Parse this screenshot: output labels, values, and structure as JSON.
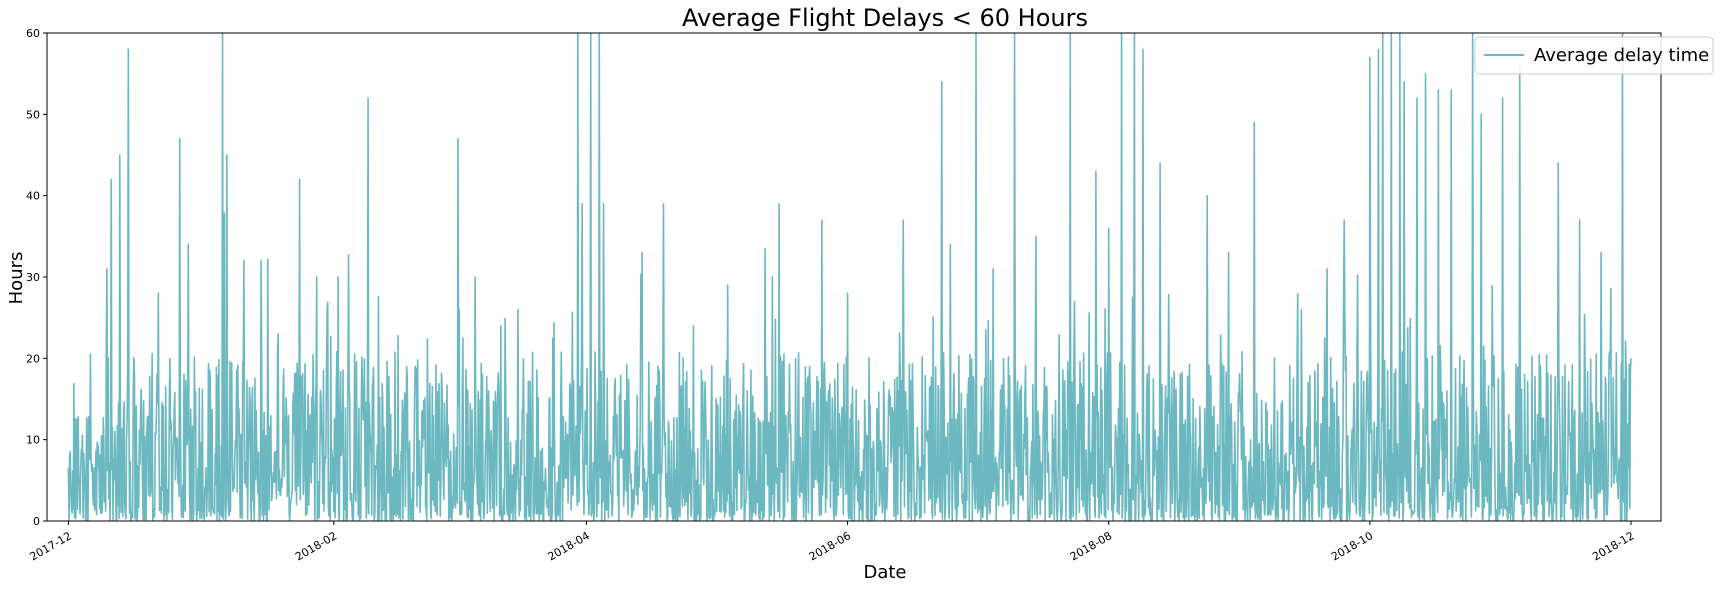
{
  "chart_data": {
    "type": "line",
    "title": "Average Flight Delays < 60 Hours",
    "xlabel": "Date",
    "ylabel": "Hours",
    "xlim": [
      "2017-11-26",
      "2018-12-08"
    ],
    "ylim": [
      0,
      60
    ],
    "x_ticks": [
      "2017-12",
      "2018-02",
      "2018-04",
      "2018-06",
      "2018-08",
      "2018-10",
      "2018-12"
    ],
    "y_ticks": [
      0,
      10,
      20,
      30,
      40,
      50,
      60
    ],
    "legend": "upper right",
    "grid": false,
    "data_range": [
      "2017-12-01",
      "2018-12-01"
    ],
    "series": [
      {
        "name": "Average delay time",
        "color": "#6cb8c0",
        "approx_samples_per_day": 7,
        "peaks": [
          [
            "2017-12-01",
            6.5
          ],
          [
            "2017-12-10",
            31
          ],
          [
            "2017-12-11",
            42
          ],
          [
            "2017-12-13",
            45
          ],
          [
            "2017-12-15",
            58
          ],
          [
            "2017-12-22",
            28
          ],
          [
            "2017-12-27",
            47
          ],
          [
            "2017-12-29",
            34
          ],
          [
            "2018-01-06",
            60
          ],
          [
            "2018-01-07",
            45
          ],
          [
            "2018-01-11",
            32
          ],
          [
            "2018-01-15",
            32
          ],
          [
            "2018-01-19",
            23
          ],
          [
            "2018-01-24",
            42
          ],
          [
            "2018-01-28",
            30
          ],
          [
            "2018-02-02",
            30
          ],
          [
            "2018-02-09",
            52
          ],
          [
            "2018-02-20",
            19
          ],
          [
            "2018-03-02",
            47
          ],
          [
            "2018-03-03",
            15
          ],
          [
            "2018-03-06",
            30
          ],
          [
            "2018-03-12",
            24
          ],
          [
            "2018-03-16",
            26
          ],
          [
            "2018-03-30",
            60
          ],
          [
            "2018-03-31",
            39
          ],
          [
            "2018-04-02",
            60
          ],
          [
            "2018-04-04",
            60
          ],
          [
            "2018-04-05",
            39
          ],
          [
            "2018-04-14",
            33
          ],
          [
            "2018-04-19",
            39
          ],
          [
            "2018-04-26",
            24
          ],
          [
            "2018-05-04",
            29
          ],
          [
            "2018-05-16",
            39
          ],
          [
            "2018-05-26",
            37
          ],
          [
            "2018-06-01",
            28
          ],
          [
            "2018-06-14",
            37
          ],
          [
            "2018-06-23",
            54
          ],
          [
            "2018-06-25",
            34
          ],
          [
            "2018-07-01",
            60
          ],
          [
            "2018-07-05",
            31
          ],
          [
            "2018-07-10",
            60
          ],
          [
            "2018-07-15",
            35
          ],
          [
            "2018-07-23",
            60
          ],
          [
            "2018-07-24",
            27
          ],
          [
            "2018-07-29",
            43
          ],
          [
            "2018-08-01",
            36
          ],
          [
            "2018-08-04",
            60
          ],
          [
            "2018-08-07",
            60
          ],
          [
            "2018-08-09",
            58
          ],
          [
            "2018-08-13",
            44
          ],
          [
            "2018-08-24",
            40
          ],
          [
            "2018-08-29",
            33
          ],
          [
            "2018-09-04",
            49
          ],
          [
            "2018-09-15",
            26
          ],
          [
            "2018-09-21",
            31
          ],
          [
            "2018-09-25",
            37
          ],
          [
            "2018-10-01",
            57
          ],
          [
            "2018-10-03",
            58
          ],
          [
            "2018-10-04",
            60
          ],
          [
            "2018-10-06",
            60
          ],
          [
            "2018-10-08",
            60
          ],
          [
            "2018-10-09",
            54
          ],
          [
            "2018-10-12",
            52
          ],
          [
            "2018-10-14",
            55
          ],
          [
            "2018-10-17",
            53
          ],
          [
            "2018-10-20",
            53
          ],
          [
            "2018-10-25",
            60
          ],
          [
            "2018-10-27",
            50
          ],
          [
            "2018-11-01",
            52
          ],
          [
            "2018-11-05",
            56
          ],
          [
            "2018-11-14",
            44
          ],
          [
            "2018-11-19",
            37
          ],
          [
            "2018-11-24",
            33
          ],
          [
            "2018-11-29",
            60
          ],
          [
            "2018-12-01",
            20
          ]
        ]
      }
    ]
  }
}
